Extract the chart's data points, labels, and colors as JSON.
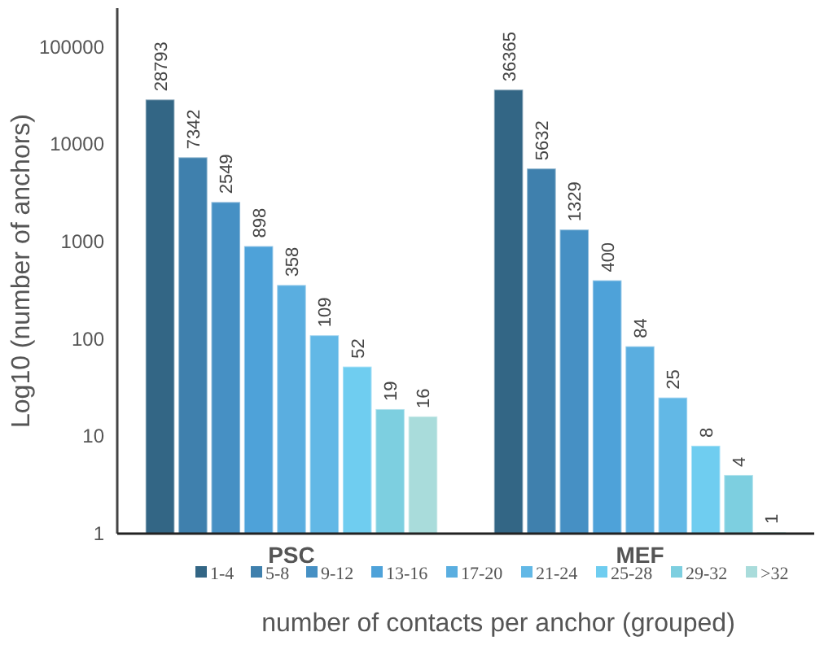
{
  "chart_data": {
    "type": "bar",
    "categories": [
      "PSC",
      "MEF"
    ],
    "ylabel": "Log10 (number of anchors)",
    "xlabel": "number of contacts per anchor (grouped)",
    "log": true,
    "ylim": [
      1,
      250000
    ],
    "yticks": [
      1,
      10,
      100,
      1000,
      10000,
      100000
    ],
    "grid": false,
    "legend": "bottom",
    "data_labels": true,
    "series": [
      {
        "name": "1-4",
        "color": "#336685",
        "values": [
          28793,
          36365
        ]
      },
      {
        "name": "5-8",
        "color": "#3f80ad",
        "values": [
          7342,
          5632
        ]
      },
      {
        "name": "9-12",
        "color": "#4690c4",
        "values": [
          2549,
          1329
        ]
      },
      {
        "name": "13-16",
        "color": "#4ea2d9",
        "values": [
          898,
          400
        ]
      },
      {
        "name": "17-20",
        "color": "#5aaee0",
        "values": [
          358,
          84
        ]
      },
      {
        "name": "21-24",
        "color": "#62b8e6",
        "values": [
          109,
          25
        ]
      },
      {
        "name": "25-28",
        "color": "#6fcdf0",
        "values": [
          52,
          8
        ]
      },
      {
        "name": "29-32",
        "color": "#7dcfe0",
        "values": [
          19,
          4
        ]
      },
      {
        "name": ">32",
        "color": "#a9dcdb",
        "values": [
          16,
          1
        ]
      }
    ]
  }
}
